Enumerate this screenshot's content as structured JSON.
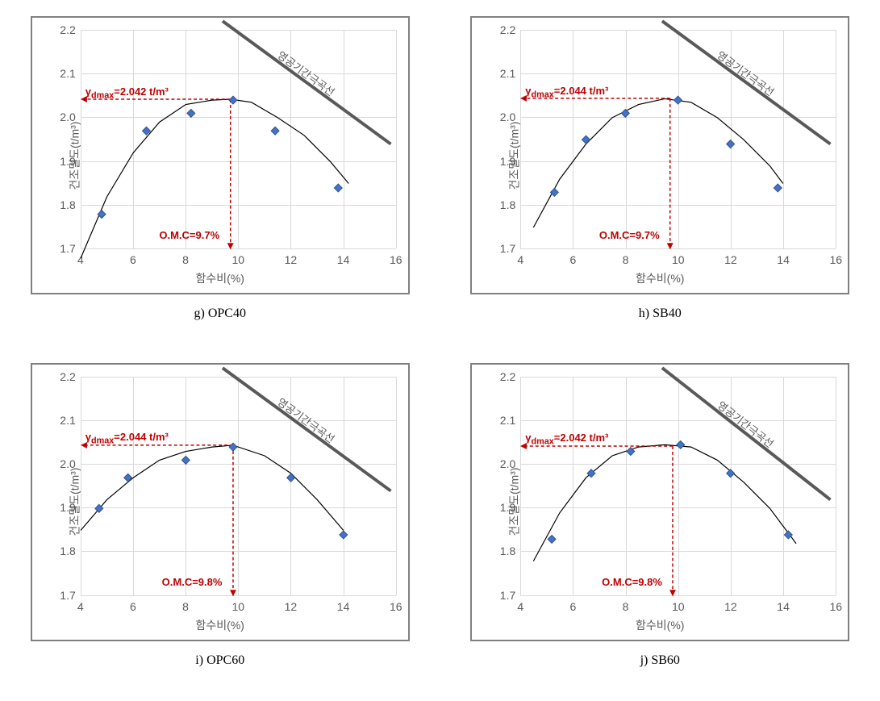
{
  "global": {
    "grid_color": "#d9d9d9",
    "axis_text_color": "#595959",
    "background_color": "#ffffff",
    "marker_color": "#4472c4",
    "marker_stroke": "#2e5396",
    "curve_color": "#000000",
    "sat_line_color": "#595959",
    "annot_color": "#c00000",
    "x_axis_label": "함수비(%)",
    "y_axis_label": "건조밀도(t/m³)",
    "x_ticks": [
      4,
      6,
      8,
      10,
      12,
      14,
      16
    ],
    "y_ticks": [
      1.7,
      1.8,
      1.9,
      2.0,
      2.1,
      2.2
    ],
    "xlim": [
      4,
      16
    ],
    "ylim": [
      1.7,
      2.2
    ],
    "sat_line_label": "영공기간극곡선",
    "marker_size": 5
  },
  "charts": [
    {
      "id": "g",
      "caption": "g) OPC40",
      "points": [
        [
          4.8,
          1.78
        ],
        [
          6.5,
          1.97
        ],
        [
          8.2,
          2.01
        ],
        [
          9.8,
          2.04
        ],
        [
          11.4,
          1.97
        ],
        [
          13.8,
          1.84
        ]
      ],
      "curve": [
        [
          4.0,
          1.68
        ],
        [
          5.0,
          1.82
        ],
        [
          6.0,
          1.92
        ],
        [
          7.0,
          1.99
        ],
        [
          8.0,
          2.03
        ],
        [
          9.0,
          2.04
        ],
        [
          9.7,
          2.042
        ],
        [
          10.5,
          2.035
        ],
        [
          11.5,
          2.0
        ],
        [
          12.5,
          1.96
        ],
        [
          13.5,
          1.9
        ],
        [
          14.2,
          1.85
        ]
      ],
      "sat_line": [
        [
          9.4,
          2.22
        ],
        [
          15.8,
          1.94
        ]
      ],
      "gamma_max": 2.042,
      "omc": 9.7,
      "gamma_label": "γ_dmax=2.042 t/m³",
      "omc_label": "O.M.C=9.7%"
    },
    {
      "id": "h",
      "caption": "h) SB40",
      "points": [
        [
          5.3,
          1.83
        ],
        [
          6.5,
          1.95
        ],
        [
          8.0,
          2.01
        ],
        [
          10.0,
          2.04
        ],
        [
          12.0,
          1.94
        ],
        [
          13.8,
          1.84
        ]
      ],
      "curve": [
        [
          4.5,
          1.75
        ],
        [
          5.5,
          1.86
        ],
        [
          6.5,
          1.94
        ],
        [
          7.5,
          2.0
        ],
        [
          8.5,
          2.03
        ],
        [
          9.5,
          2.043
        ],
        [
          10.5,
          2.035
        ],
        [
          11.5,
          2.0
        ],
        [
          12.5,
          1.95
        ],
        [
          13.5,
          1.89
        ],
        [
          14.0,
          1.85
        ]
      ],
      "sat_line": [
        [
          9.4,
          2.22
        ],
        [
          15.8,
          1.94
        ]
      ],
      "gamma_max": 2.044,
      "omc": 9.7,
      "gamma_label": "γ_dmax=2.044 t/m³",
      "omc_label": "O.M.C=9.7%"
    },
    {
      "id": "i",
      "caption": "i) OPC60",
      "points": [
        [
          4.7,
          1.9
        ],
        [
          5.8,
          1.97
        ],
        [
          8.0,
          2.01
        ],
        [
          9.8,
          2.04
        ],
        [
          12.0,
          1.97
        ],
        [
          14.0,
          1.84
        ]
      ],
      "curve": [
        [
          4.0,
          1.85
        ],
        [
          5.0,
          1.92
        ],
        [
          6.0,
          1.97
        ],
        [
          7.0,
          2.01
        ],
        [
          8.0,
          2.03
        ],
        [
          9.0,
          2.04
        ],
        [
          9.8,
          2.044
        ],
        [
          11.0,
          2.02
        ],
        [
          12.0,
          1.98
        ],
        [
          13.0,
          1.92
        ],
        [
          14.0,
          1.85
        ]
      ],
      "sat_line": [
        [
          9.4,
          2.22
        ],
        [
          15.8,
          1.94
        ]
      ],
      "gamma_max": 2.044,
      "omc": 9.8,
      "gamma_label": "γ_dmax=2.044 t/m³",
      "omc_label": "O.M.C=9.8%"
    },
    {
      "id": "j",
      "caption": "j) SB60",
      "points": [
        [
          5.2,
          1.83
        ],
        [
          6.7,
          1.98
        ],
        [
          8.2,
          2.03
        ],
        [
          10.1,
          2.045
        ],
        [
          12.0,
          1.98
        ],
        [
          14.2,
          1.84
        ]
      ],
      "curve": [
        [
          4.5,
          1.78
        ],
        [
          5.5,
          1.89
        ],
        [
          6.5,
          1.97
        ],
        [
          7.5,
          2.02
        ],
        [
          8.5,
          2.04
        ],
        [
          9.5,
          2.045
        ],
        [
          10.5,
          2.04
        ],
        [
          11.5,
          2.01
        ],
        [
          12.5,
          1.96
        ],
        [
          13.5,
          1.9
        ],
        [
          14.5,
          1.82
        ]
      ],
      "sat_line": [
        [
          9.4,
          2.22
        ],
        [
          15.8,
          1.92
        ]
      ],
      "gamma_max": 2.042,
      "omc": 9.8,
      "gamma_label": "γ_dmax=2.042 t/m³",
      "omc_label": "O.M.C=9.8%"
    }
  ]
}
